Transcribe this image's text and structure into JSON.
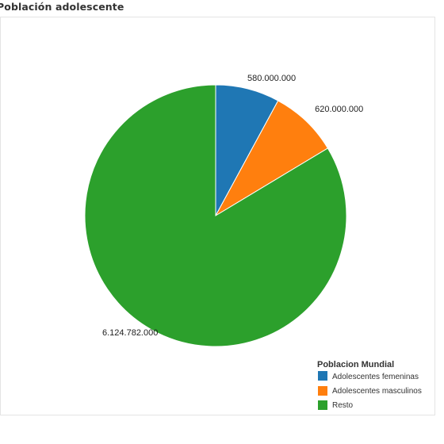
{
  "chart_data": {
    "type": "pie",
    "title": "Población adolescente",
    "legend_title": "Poblacion Mundial",
    "legend_position": "bottom-right",
    "categories": [
      "Adolescentes femeninas",
      "Adolescentes masculinos",
      "Resto"
    ],
    "values": [
      580000000,
      620000000,
      6124782000
    ],
    "value_labels": [
      "580.000.000",
      "620.000.000",
      "6.124.782.000"
    ],
    "colors": [
      "#1f77b4",
      "#ff7f0e",
      "#2ca02c"
    ]
  }
}
